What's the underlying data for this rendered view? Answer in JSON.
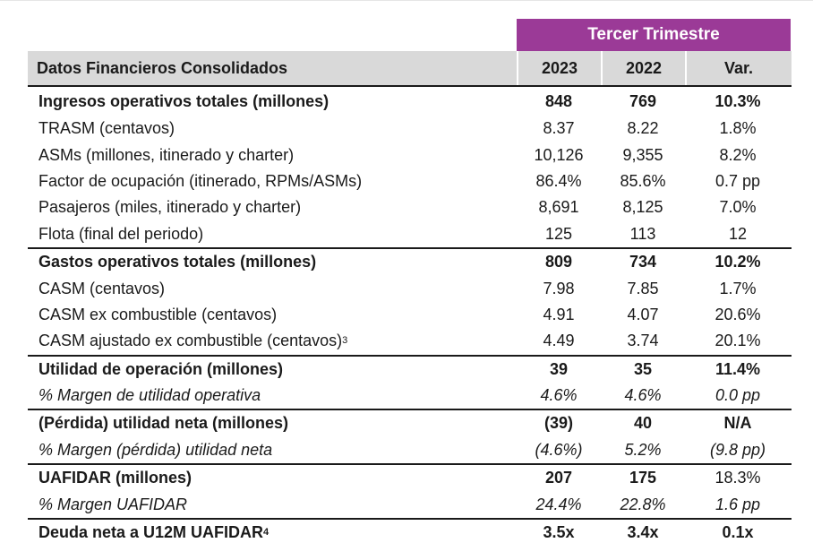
{
  "header": {
    "period": "Tercer Trimestre",
    "table_title": "Datos Financieros Consolidados",
    "col_2023": "2023",
    "col_2022": "2022",
    "col_var": "Var."
  },
  "sections": [
    {
      "rows": [
        {
          "label": "Ingresos operativos totales (millones)",
          "v2023": "848",
          "v2022": "769",
          "var": "10.3%",
          "style": "bold"
        },
        {
          "label": "TRASM (centavos)",
          "v2023": "8.37",
          "v2022": "8.22",
          "var": "1.8%",
          "style": "normal"
        },
        {
          "label": "ASMs (millones, itinerado y charter)",
          "v2023": "10,126",
          "v2022": "9,355",
          "var": "8.2%",
          "style": "normal"
        },
        {
          "label": "Factor de ocupación (itinerado, RPMs/ASMs)",
          "v2023": "86.4%",
          "v2022": "85.6%",
          "var": "0.7 pp",
          "style": "normal"
        },
        {
          "label": "Pasajeros (miles, itinerado y charter)",
          "v2023": "8,691",
          "v2022": "8,125",
          "var": "7.0%",
          "style": "normal"
        },
        {
          "label": "Flota (final del periodo)",
          "v2023": "125",
          "v2022": "113",
          "var": "12",
          "style": "normal"
        }
      ]
    },
    {
      "rows": [
        {
          "label": "Gastos operativos totales (millones)",
          "v2023": "809",
          "v2022": "734",
          "var": "10.2%",
          "style": "bold"
        },
        {
          "label": "CASM (centavos)",
          "v2023": "7.98",
          "v2022": "7.85",
          "var": "1.7%",
          "style": "normal"
        },
        {
          "label": "CASM ex combustible (centavos)",
          "v2023": "4.91",
          "v2022": "4.07",
          "var": "20.6%",
          "style": "normal"
        },
        {
          "label": "CASM ajustado ex combustible (centavos)",
          "sup": "3",
          "v2023": "4.49",
          "v2022": "3.74",
          "var": "20.1%",
          "style": "normal"
        }
      ]
    },
    {
      "rows": [
        {
          "label": "Utilidad de operación (millones)",
          "v2023": "39",
          "v2022": "35",
          "var": "11.4%",
          "style": "bold"
        },
        {
          "label": "% Margen de utilidad operativa",
          "v2023": "4.6%",
          "v2022": "4.6%",
          "var": "0.0 pp",
          "style": "italic"
        }
      ]
    },
    {
      "rows": [
        {
          "label": "(Pérdida) utilidad neta (millones)",
          "v2023": "(39)",
          "v2022": "40",
          "var": "N/A",
          "style": "bold"
        },
        {
          "label": "% Margen (pérdida) utilidad neta",
          "v2023": "(4.6%)",
          "v2022": "5.2%",
          "var": "(9.8 pp)",
          "style": "italic"
        }
      ]
    },
    {
      "rows": [
        {
          "label": "UAFIDAR (millones)",
          "v2023": "207",
          "v2022": "175",
          "var": "18.3%",
          "style": "bold",
          "var_style": "normal"
        },
        {
          "label": "% Margen UAFIDAR",
          "v2023": "24.4%",
          "v2022": "22.8%",
          "var": "1.6 pp",
          "style": "italic"
        }
      ]
    },
    {
      "last": true,
      "rows": [
        {
          "label": "Deuda neta a U12M UAFIDAR",
          "sup": "4",
          "v2023": "3.5x",
          "v2022": "3.4x",
          "var": "0.1x",
          "style": "bold"
        }
      ]
    }
  ]
}
